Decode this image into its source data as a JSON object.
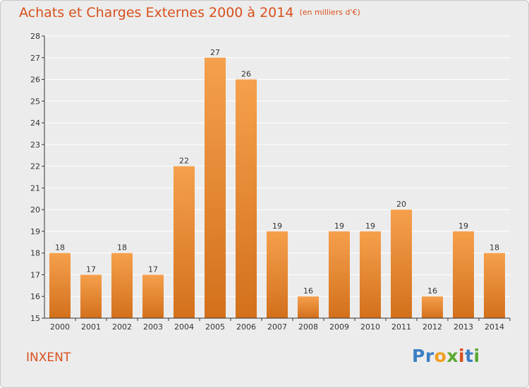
{
  "title": "Achats et Charges Externes 2000 à 2014",
  "unit": "(en milliers d'€)",
  "commune": "INXENT",
  "logo": {
    "text": "Proxiti",
    "letters": [
      {
        "ch": "P",
        "color": "#3b7fc4"
      },
      {
        "ch": "r",
        "color": "#3b7fc4"
      },
      {
        "ch": "o",
        "color": "#f0a020"
      },
      {
        "ch": "x",
        "color": "#5aa832"
      },
      {
        "ch": "i",
        "color": "#d8501c"
      },
      {
        "ch": "t",
        "color": "#3b7fc4"
      },
      {
        "ch": "i",
        "color": "#5aa832"
      }
    ]
  },
  "colors": {
    "accent": "#d8501c",
    "bar_top": "#f5a04c",
    "bar_bottom": "#d3701c",
    "grid": "#ffffff",
    "axis": "#333333"
  },
  "chart_data": {
    "type": "bar",
    "categories": [
      "2000",
      "2001",
      "2002",
      "2003",
      "2004",
      "2005",
      "2006",
      "2007",
      "2008",
      "2009",
      "2010",
      "2011",
      "2012",
      "2013",
      "2014"
    ],
    "values": [
      18,
      17,
      18,
      17,
      22,
      27,
      26,
      19,
      16,
      19,
      19,
      20,
      16,
      19,
      18
    ],
    "ylim": [
      15,
      28
    ],
    "yticks": [
      15,
      16,
      17,
      18,
      19,
      20,
      21,
      22,
      23,
      24,
      25,
      26,
      27,
      28
    ],
    "grid": true
  }
}
